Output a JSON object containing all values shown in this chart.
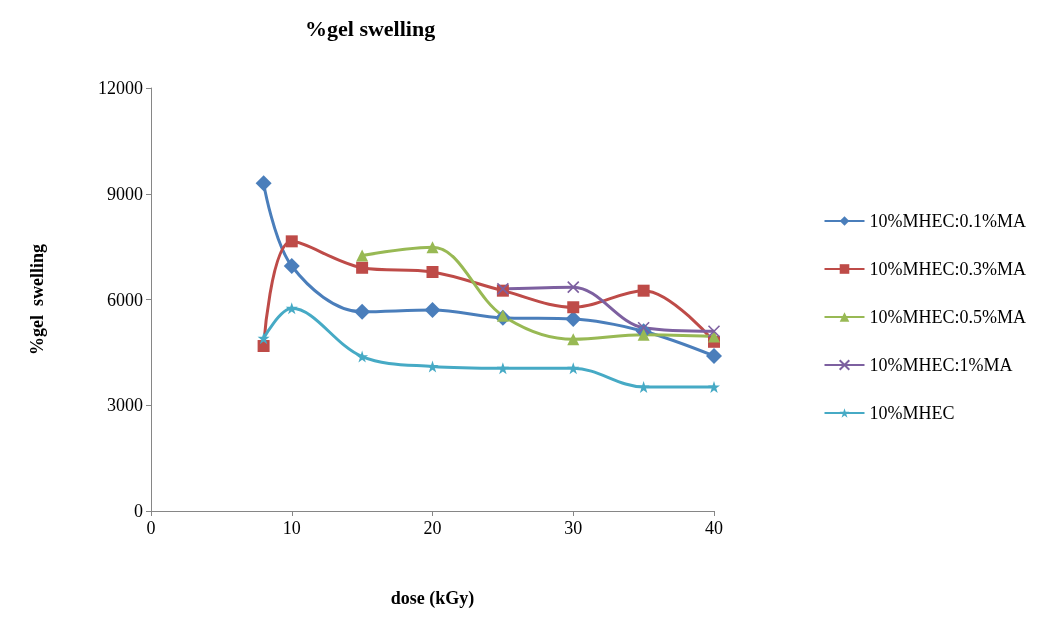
{
  "chart_data": {
    "type": "line",
    "title": "%gel swelling",
    "xlabel": "dose (kGy)",
    "ylabel": "%gel  swelling",
    "xlim": [
      0,
      40
    ],
    "xticks": [
      0,
      10,
      20,
      30,
      40
    ],
    "ylim": [
      0,
      12000
    ],
    "yticks": [
      0,
      3000,
      6000,
      9000,
      12000
    ],
    "grid": false,
    "legend": "right",
    "series": [
      {
        "name": "10%MHEC:0.1%MA",
        "color": "#4a7ebb",
        "marker": "diamond",
        "x": [
          8,
          10,
          15,
          20,
          25,
          30,
          35,
          40
        ],
        "values": [
          9300,
          6950,
          5650,
          5700,
          5480,
          5450,
          5100,
          4400
        ]
      },
      {
        "name": "10%MHEC:0.3%MA",
        "color": "#be4b48",
        "marker": "square",
        "x": [
          8,
          10,
          15,
          20,
          25,
          30,
          35,
          40
        ],
        "values": [
          4680,
          7650,
          6900,
          6780,
          6250,
          5780,
          6250,
          4800
        ]
      },
      {
        "name": "10%MHEC:0.5%MA",
        "color": "#98b954",
        "marker": "triangle",
        "x": [
          15,
          20,
          25,
          30,
          35,
          40
        ],
        "values": [
          7250,
          7480,
          5540,
          4870,
          5000,
          4950
        ]
      },
      {
        "name": "10%MHEC:1%MA",
        "color": "#7d60a0",
        "marker": "cross",
        "x": [
          25,
          30,
          35,
          40
        ],
        "values": [
          6300,
          6350,
          5200,
          5100
        ]
      },
      {
        "name": "10%MHEC",
        "color": "#46aac5",
        "marker": "star",
        "x": [
          8,
          10,
          15,
          20,
          25,
          30,
          35,
          40
        ],
        "values": [
          4900,
          5750,
          4380,
          4100,
          4050,
          4050,
          3520,
          3520
        ]
      }
    ]
  }
}
